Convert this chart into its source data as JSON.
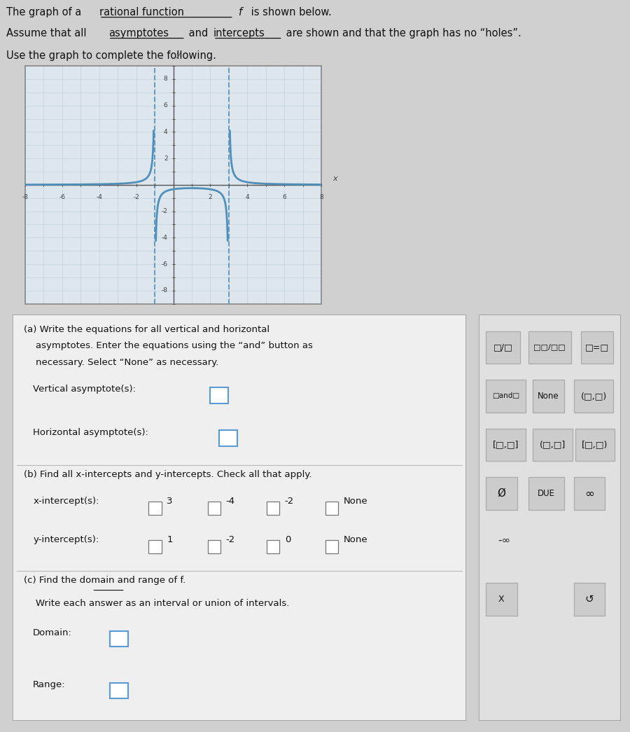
{
  "graph_xlim": [
    -8,
    8
  ],
  "graph_ylim": [
    -9,
    9
  ],
  "vert_asymptotes": [
    -1,
    3
  ],
  "horiz_asymptote": 0,
  "curve_color": "#4f8fba",
  "asymptote_color": "#4f8fba",
  "grid_color": "#b8ccd8",
  "bg_outer": "#d0d0d0",
  "graph_bg": "#dde6ec",
  "box_bg": "#efefef",
  "sidebar_bg": "#e0e0e0",
  "sec_a_line1": "(a) Write the equations for all vertical and horizontal",
  "sec_a_line2": "    asymptotes. Enter the equations using the “and” button as",
  "sec_a_line3": "    necessary. Select “None” as necessary.",
  "vert_label": "Vertical asymptote(s):",
  "horiz_label": "Horizontal asymptote(s):",
  "sec_b_line1": "(b) Find all x-intercepts and y-intercepts. Check all that apply.",
  "xi_label": "x-intercept(s):",
  "yi_label": "y-intercept(s):",
  "xi_choices": [
    "3",
    "-4",
    "-2",
    "None"
  ],
  "yi_choices": [
    "1",
    "-2",
    "0",
    "None"
  ],
  "sec_c_line1": "(c) Find the domain and range of f.",
  "sec_c_line2": "    Write each answer as an interval or union of intervals.",
  "domain_label": "Domain:",
  "range_label": "Range:"
}
